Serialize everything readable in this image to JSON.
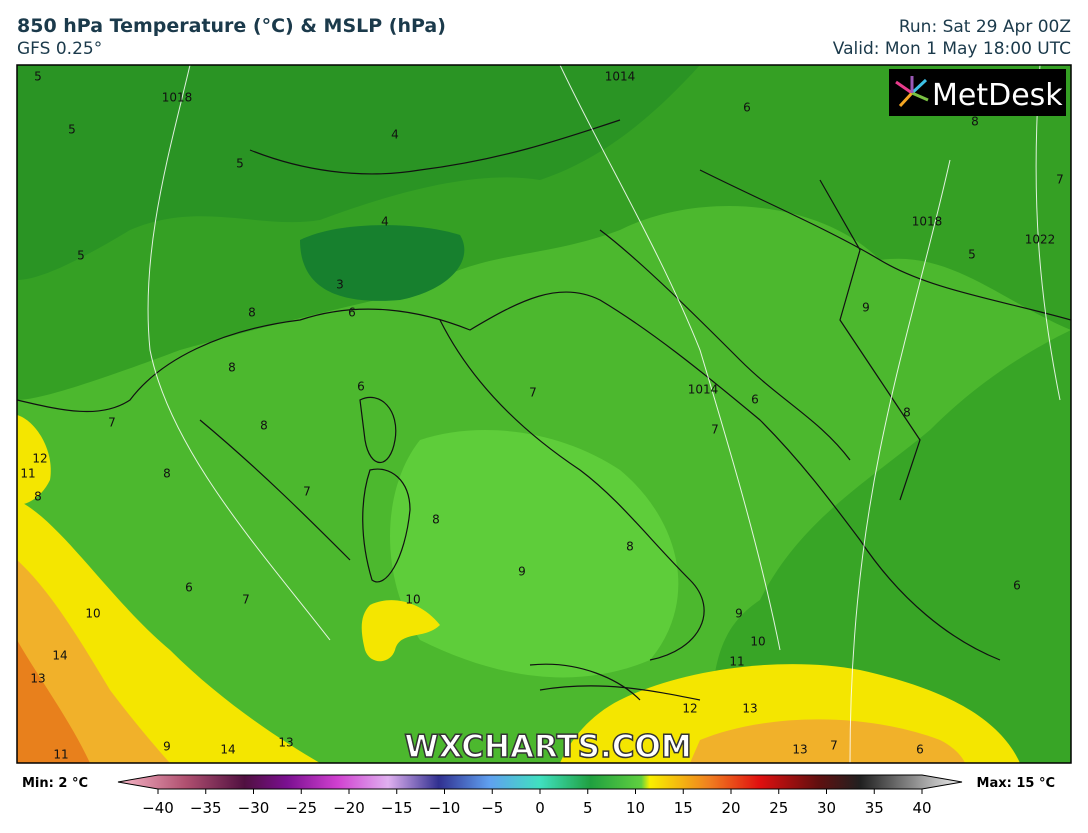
{
  "header": {
    "title": "850 hPa Temperature (°C) & MSLP (hPa)",
    "subtitle": "GFS 0.25°",
    "run": "Run: Sat 29 Apr 00Z",
    "valid": "Valid: Mon 1 May 18:00 UTC"
  },
  "logo": "MetDesk",
  "watermark": "WXCHARTS.COM",
  "map": {
    "contour_labels": [
      "5",
      "5",
      "1018",
      "5",
      "5",
      "4",
      "4",
      "3",
      "6",
      "1014",
      "6",
      "8",
      "5",
      "7",
      "1018",
      "1022",
      "8",
      "6",
      "8",
      "7",
      "8",
      "9",
      "1014",
      "7",
      "6",
      "8",
      "12",
      "11",
      "8",
      "7",
      "8",
      "7",
      "6",
      "7",
      "8",
      "9",
      "10",
      "8",
      "10",
      "9",
      "10",
      "11",
      "12",
      "13",
      "14",
      "13",
      "11",
      "9",
      "14",
      "13",
      "13",
      "7",
      "6",
      "6"
    ]
  },
  "colorbar": {
    "min_label": "Min: 2 °C",
    "max_label": "Max: 15 °C",
    "ticks": [
      {
        "value": -40,
        "label": "−40"
      },
      {
        "value": -35,
        "label": "−35"
      },
      {
        "value": -30,
        "label": "−30"
      },
      {
        "value": -25,
        "label": "−25"
      },
      {
        "value": -20,
        "label": "−20"
      },
      {
        "value": -15,
        "label": "−15"
      },
      {
        "value": -10,
        "label": "−10"
      },
      {
        "value": -5,
        "label": "−5"
      },
      0,
      5,
      10,
      15,
      20,
      25,
      30,
      35,
      40
    ]
  }
}
